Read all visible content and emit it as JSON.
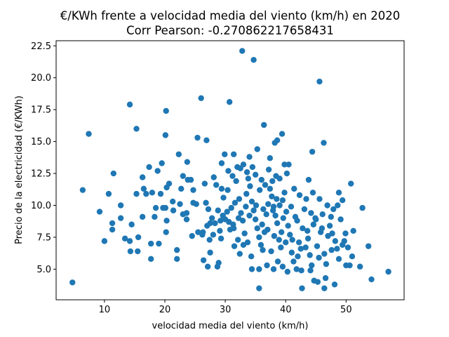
{
  "chart_data": {
    "type": "scatter",
    "title": "€/KWh frente a velocidad media del viento (km/h) en 2020",
    "subtitle": "Corr Pearson: -0.270862217658431",
    "xlabel": "velocidad media del viento (km/h)",
    "ylabel": "Precio de la electricidad (€/KWh)",
    "xlim": [
      2.0,
      59.6
    ],
    "ylim": [
      2.6,
      22.9
    ],
    "xticks": [
      10,
      20,
      30,
      40,
      50
    ],
    "yticks": [
      5.0,
      7.5,
      10.0,
      12.5,
      15.0,
      17.5,
      20.0,
      22.5
    ],
    "ytick_labels": [
      "5.0",
      "7.5",
      "10.0",
      "12.5",
      "15.0",
      "17.5",
      "20.0",
      "22.5"
    ],
    "grid": false,
    "color": "#1f77b4",
    "points": [
      [
        4.7,
        3.96
      ],
      [
        6.4,
        11.2
      ],
      [
        7.4,
        15.6
      ],
      [
        9.2,
        9.5
      ],
      [
        10,
        7.2
      ],
      [
        10.7,
        10.9
      ],
      [
        11.3,
        8.6
      ],
      [
        11.3,
        8.1
      ],
      [
        11.5,
        12.5
      ],
      [
        12.7,
        10
      ],
      [
        12.7,
        9.0
      ],
      [
        13.4,
        7.4
      ],
      [
        14.2,
        17.9
      ],
      [
        14.2,
        7.2
      ],
      [
        14.5,
        8.5
      ],
      [
        14.3,
        6.4
      ],
      [
        15.3,
        16.0
      ],
      [
        15.3,
        10.9
      ],
      [
        15.5,
        6.4
      ],
      [
        15.6,
        7.5
      ],
      [
        16.3,
        12.2
      ],
      [
        16.5,
        11.3
      ],
      [
        16.3,
        9.1
      ],
      [
        16.9,
        10.9
      ],
      [
        17.4,
        13.0
      ],
      [
        17.7,
        5.8
      ],
      [
        17.7,
        7.0
      ],
      [
        17.9,
        11
      ],
      [
        18.3,
        9.1
      ],
      [
        18.5,
        9.8
      ],
      [
        18.8,
        12.7
      ],
      [
        19,
        7
      ],
      [
        19.3,
        10.9
      ],
      [
        19.5,
        13.3
      ],
      [
        19.7,
        9.8
      ],
      [
        20.2,
        17.4
      ],
      [
        20.1,
        15.5
      ],
      [
        20.3,
        11.4
      ],
      [
        20.2,
        7.9
      ],
      [
        20.7,
        11.7
      ],
      [
        20.1,
        9.8
      ],
      [
        20.3,
        8.8
      ],
      [
        21.3,
        10.3
      ],
      [
        21.4,
        9.6
      ],
      [
        22,
        6.5
      ],
      [
        22,
        5.8
      ],
      [
        22.3,
        14
      ],
      [
        22.5,
        10.1
      ],
      [
        22.7,
        11.3
      ],
      [
        23,
        12.3
      ],
      [
        23,
        9.3
      ],
      [
        23.6,
        9.4
      ],
      [
        23.6,
        8.9
      ],
      [
        23.7,
        13.4
      ],
      [
        23.8,
        12
      ],
      [
        24.3,
        12
      ],
      [
        24.7,
        11.2
      ],
      [
        24.7,
        10.2
      ],
      [
        25.4,
        15.3
      ],
      [
        25.2,
        10.1
      ],
      [
        26,
        18.4
      ],
      [
        26.3,
        7.9
      ],
      [
        26.4,
        5.7
      ],
      [
        26.6,
        11.7
      ],
      [
        26.9,
        15.1
      ],
      [
        27.1,
        5.2
      ],
      [
        27.5,
        6.3
      ],
      [
        27.5,
        8.6
      ],
      [
        28.1,
        12.2
      ],
      [
        28.7,
        5.2
      ],
      [
        28.9,
        5.5
      ],
      [
        29.3,
        7.4
      ],
      [
        29.4,
        13.3
      ],
      [
        29.4,
        11.3
      ],
      [
        29.9,
        14
      ],
      [
        30.7,
        18.1
      ],
      [
        31.4,
        14
      ],
      [
        32.8,
        22.1
      ],
      [
        34.7,
        21.4
      ],
      [
        45.6,
        19.7
      ],
      [
        46.3,
        14.9
      ],
      [
        44.4,
        14.2
      ],
      [
        39.4,
        15.6
      ],
      [
        36.4,
        16.3
      ],
      [
        38.2,
        14.9
      ],
      [
        37.4,
        13.7
      ],
      [
        35.3,
        14.4
      ],
      [
        40.5,
        13.2
      ],
      [
        35.6,
        5
      ],
      [
        34.4,
        5
      ],
      [
        35.6,
        3.5
      ],
      [
        42.7,
        3.5
      ],
      [
        46.4,
        3.5
      ],
      [
        48.1,
        3.8
      ],
      [
        57,
        4.8
      ],
      [
        54.2,
        4.2
      ],
      [
        53.7,
        6.8
      ],
      [
        52.7,
        9.8
      ],
      [
        51.2,
        8.0
      ],
      [
        50.8,
        11.7
      ],
      [
        48.8,
        11.0
      ],
      [
        49.4,
        10.4
      ],
      [
        24.5,
        7.6
      ],
      [
        25.5,
        7.9
      ],
      [
        26.2,
        7.7
      ],
      [
        27.0,
        8.4
      ],
      [
        27.8,
        9.0
      ],
      [
        28.3,
        8.6
      ],
      [
        28.8,
        9.6
      ],
      [
        29.2,
        8.8
      ],
      [
        29.6,
        9.2
      ],
      [
        30.0,
        8.9
      ],
      [
        30.3,
        9.5
      ],
      [
        30.6,
        8.7
      ],
      [
        31.0,
        9.8
      ],
      [
        31.3,
        8.5
      ],
      [
        31.6,
        10.2
      ],
      [
        27.2,
        9.7
      ],
      [
        26.8,
        10.2
      ],
      [
        28.5,
        11.6
      ],
      [
        29.7,
        10.6
      ],
      [
        30.4,
        11.2
      ],
      [
        31.8,
        11.9
      ],
      [
        32.3,
        10.5
      ],
      [
        32.6,
        9.4
      ],
      [
        32.9,
        8.8
      ],
      [
        33.2,
        7.8
      ],
      [
        33.5,
        10.9
      ],
      [
        33.8,
        12.1
      ],
      [
        34.1,
        11.5
      ],
      [
        34.4,
        10.3
      ],
      [
        34.7,
        9.6
      ],
      [
        35.0,
        8.9
      ],
      [
        35.3,
        8.2
      ],
      [
        35.6,
        7.5
      ],
      [
        35.9,
        6.9
      ],
      [
        36.2,
        6.5
      ],
      [
        36.5,
        7.9
      ],
      [
        36.8,
        9.3
      ],
      [
        37.1,
        10.1
      ],
      [
        37.4,
        11.3
      ],
      [
        37.7,
        10.7
      ],
      [
        38.0,
        9.9
      ],
      [
        38.3,
        9.2
      ],
      [
        38.6,
        8.6
      ],
      [
        38.9,
        7.3
      ],
      [
        39.2,
        6.7
      ],
      [
        39.5,
        10.4
      ],
      [
        39.8,
        11.0
      ],
      [
        40.1,
        9.5
      ],
      [
        40.4,
        8.4
      ],
      [
        40.7,
        7.7
      ],
      [
        41.0,
        6.3
      ],
      [
        41.3,
        5.6
      ],
      [
        41.6,
        9.1
      ],
      [
        41.9,
        8.8
      ],
      [
        42.2,
        7.1
      ],
      [
        42.5,
        6.6
      ],
      [
        42.8,
        8.2
      ],
      [
        43.1,
        9.7
      ],
      [
        43.4,
        10.5
      ],
      [
        43.7,
        7.4
      ],
      [
        44.0,
        6.1
      ],
      [
        44.3,
        5.3
      ],
      [
        44.6,
        8.5
      ],
      [
        44.9,
        9.0
      ],
      [
        45.2,
        6.8
      ],
      [
        45.5,
        5.9
      ],
      [
        45.8,
        7.9
      ],
      [
        46.1,
        9.3
      ],
      [
        46.4,
        6.2
      ],
      [
        46.7,
        5.4
      ],
      [
        47.0,
        7.6
      ],
      [
        47.3,
        8.4
      ],
      [
        47.6,
        6.5
      ],
      [
        47.9,
        9.7
      ],
      [
        48.2,
        7.2
      ],
      [
        48.5,
        6.6
      ],
      [
        48.8,
        5.8
      ],
      [
        49.1,
        8.9
      ],
      [
        49.4,
        6.9
      ],
      [
        49.7,
        7.2
      ],
      [
        50.0,
        5.3
      ],
      [
        50.3,
        6.7
      ],
      [
        50.6,
        5.3
      ],
      [
        51.0,
        6.0
      ],
      [
        52.3,
        5.2
      ],
      [
        30.5,
        12.7
      ],
      [
        31.2,
        12.3
      ],
      [
        32.0,
        13.0
      ],
      [
        32.5,
        12.9
      ],
      [
        33.0,
        13.2
      ],
      [
        33.6,
        12.6
      ],
      [
        34.0,
        13.8
      ],
      [
        34.5,
        13.0
      ],
      [
        35.0,
        12.4
      ],
      [
        35.7,
        11.2
      ],
      [
        36.0,
        12.0
      ],
      [
        36.6,
        11.6
      ],
      [
        37.2,
        12.8
      ],
      [
        37.8,
        11.9
      ],
      [
        38.4,
        12.3
      ],
      [
        39.0,
        12.1
      ],
      [
        39.8,
        13.2
      ],
      [
        40.2,
        12.5
      ],
      [
        38.6,
        15.1
      ],
      [
        31.5,
        6.8
      ],
      [
        32.1,
        7.3
      ],
      [
        32.4,
        6.2
      ],
      [
        33.0,
        6.9
      ],
      [
        33.7,
        7.1
      ],
      [
        34.3,
        6.0
      ],
      [
        36.9,
        5.3
      ],
      [
        37.6,
        6.4
      ],
      [
        38.0,
        5.0
      ],
      [
        38.7,
        5.6
      ],
      [
        39.5,
        5.2
      ],
      [
        40.3,
        4.8
      ],
      [
        41.8,
        5.0
      ],
      [
        42.6,
        4.9
      ],
      [
        43.3,
        6.7
      ],
      [
        44.1,
        4.9
      ],
      [
        44.7,
        4.1
      ],
      [
        45.3,
        4.0
      ],
      [
        46.6,
        4.3
      ],
      [
        39.0,
        10.0
      ],
      [
        38.5,
        10.5
      ],
      [
        37.9,
        9.6
      ],
      [
        39.6,
        9.0
      ],
      [
        40.9,
        9.9
      ],
      [
        36.3,
        9.7
      ],
      [
        35.1,
        10.0
      ],
      [
        34.0,
        9.2
      ],
      [
        33.4,
        9.9
      ],
      [
        32.2,
        9.0
      ],
      [
        31.4,
        8.2
      ],
      [
        30.8,
        8.1
      ],
      [
        29.1,
        8.0
      ],
      [
        28.0,
        7.7
      ],
      [
        27.4,
        7.3
      ],
      [
        36.1,
        8.5
      ],
      [
        37.0,
        8.1
      ],
      [
        38.1,
        7.6
      ],
      [
        39.3,
        7.9
      ],
      [
        40.0,
        7.1
      ],
      [
        41.1,
        7.3
      ],
      [
        42.0,
        6.0
      ],
      [
        43.6,
        8.0
      ],
      [
        44.2,
        9.4
      ],
      [
        45.0,
        8.9
      ],
      [
        46.9,
        10.0
      ],
      [
        47.5,
        9.1
      ],
      [
        46.0,
        8.2
      ],
      [
        42.3,
        10.8
      ],
      [
        41.4,
        11.3
      ],
      [
        43.8,
        12.0
      ],
      [
        44.5,
        11.0
      ],
      [
        45.6,
        10.5
      ],
      [
        47.7,
        7.8
      ],
      [
        48.6,
        10.0
      ],
      [
        49.9,
        7.8
      ]
    ]
  }
}
